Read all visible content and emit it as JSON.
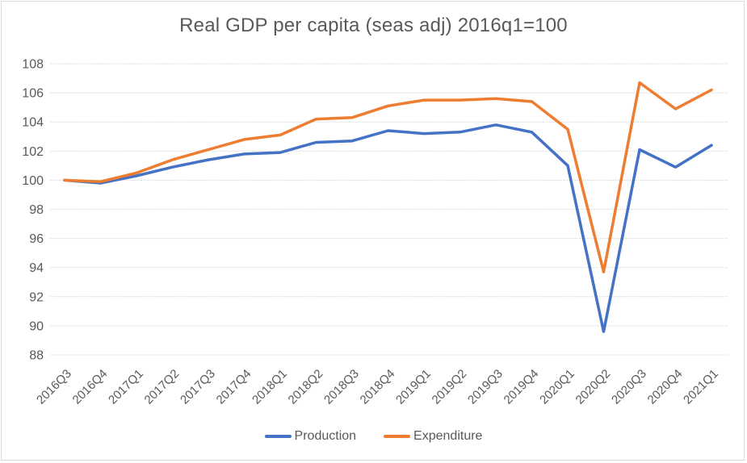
{
  "chart_data": {
    "type": "line",
    "title": "Real GDP per capita (seas adj) 2016q1=100",
    "categories": [
      "2016Q3",
      "2016Q4",
      "2017Q1",
      "2017Q2",
      "2017Q3",
      "2017Q4",
      "2018Q1",
      "2018Q2",
      "2018Q3",
      "2018Q4",
      "2019Q1",
      "2019Q2",
      "2019Q3",
      "2019Q4",
      "2020Q1",
      "2020Q2",
      "2020Q3",
      "2020Q4",
      "2021Q1"
    ],
    "series": [
      {
        "name": "Production",
        "color": "#4472C4",
        "values": [
          100.0,
          99.8,
          100.3,
          100.9,
          101.4,
          101.8,
          101.9,
          102.6,
          102.7,
          103.4,
          103.2,
          103.3,
          103.8,
          103.3,
          101.0,
          89.6,
          102.1,
          100.9,
          102.4
        ]
      },
      {
        "name": "Expenditure",
        "color": "#ED7D31",
        "values": [
          100.0,
          99.9,
          100.5,
          101.4,
          102.1,
          102.8,
          103.1,
          104.2,
          104.3,
          105.1,
          105.5,
          105.5,
          105.6,
          105.4,
          103.5,
          93.7,
          106.7,
          104.9,
          106.2
        ]
      }
    ],
    "ylim": [
      88,
      108
    ],
    "ytick_step": 2,
    "ytick_labels": [
      "88",
      "90",
      "92",
      "94",
      "96",
      "98",
      "100",
      "102",
      "104",
      "106",
      "108"
    ],
    "xlabel": "",
    "ylabel": "",
    "grid": true,
    "gridline_color": "#D9D9D9",
    "axis_text_color": "#595959",
    "legend_position": "bottom"
  }
}
